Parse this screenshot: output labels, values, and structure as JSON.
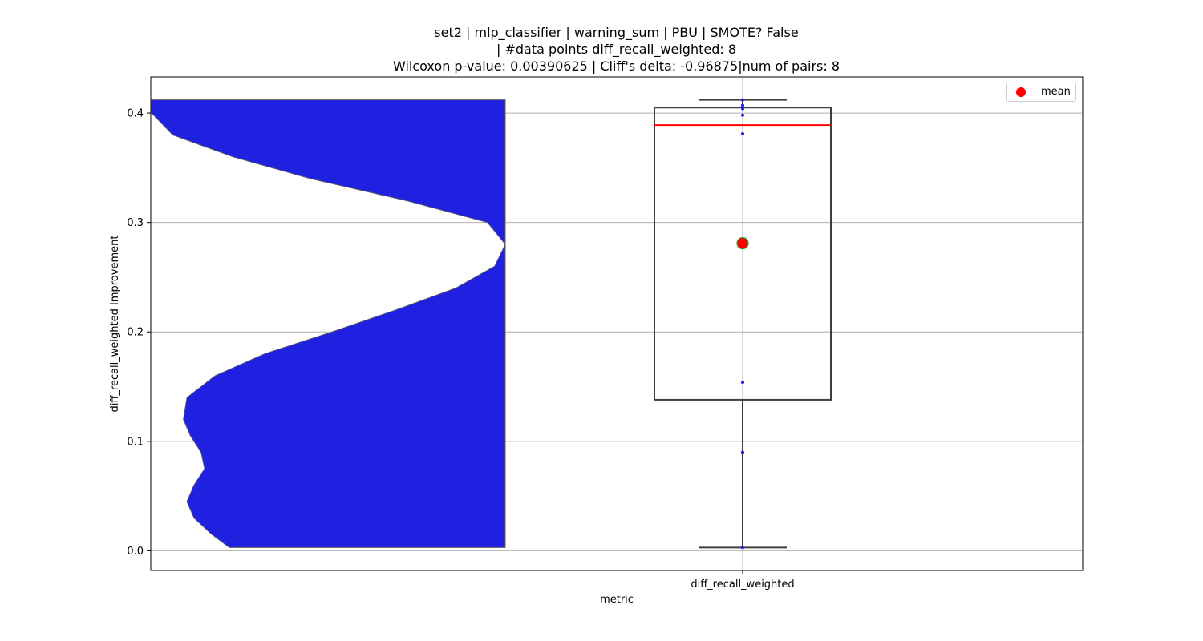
{
  "chart_data": {
    "type": "violin+box",
    "title_lines": [
      "set2 | mlp_classifier | warning_sum | PBU | SMOTE? False",
      "| #data points diff_recall_weighted: 8",
      "Wilcoxon p-value: 0.00390625 | Cliff's delta: -0.96875|num of pairs: 8"
    ],
    "xlabel": "metric",
    "ylabel": "diff_recall_weighted Improvement",
    "categories": [
      "diff_recall_weighted"
    ],
    "ylim": [
      -0.018,
      0.433
    ],
    "yticks": [
      0.0,
      0.1,
      0.2,
      0.3,
      0.4
    ],
    "ytick_labels": [
      "0.0",
      "0.1",
      "0.2",
      "0.3",
      "0.4"
    ],
    "grid": true,
    "points": [
      0.003,
      0.09,
      0.154,
      0.381,
      0.398,
      0.404,
      0.407,
      0.412
    ],
    "box": {
      "q1": 0.138,
      "median": 0.389,
      "q3": 0.405,
      "whisker_low": 0.003,
      "whisker_high": 0.412
    },
    "mean": 0.281,
    "violin_density": [
      [
        0.003,
        0.78
      ],
      [
        0.015,
        0.83
      ],
      [
        0.03,
        0.88
      ],
      [
        0.045,
        0.9
      ],
      [
        0.06,
        0.88
      ],
      [
        0.075,
        0.85
      ],
      [
        0.09,
        0.86
      ],
      [
        0.105,
        0.89
      ],
      [
        0.12,
        0.91
      ],
      [
        0.14,
        0.9
      ],
      [
        0.16,
        0.82
      ],
      [
        0.18,
        0.68
      ],
      [
        0.2,
        0.49
      ],
      [
        0.22,
        0.31
      ],
      [
        0.24,
        0.14
      ],
      [
        0.26,
        0.03
      ],
      [
        0.28,
        0.0
      ],
      [
        0.3,
        0.05
      ],
      [
        0.32,
        0.28
      ],
      [
        0.34,
        0.55
      ],
      [
        0.36,
        0.77
      ],
      [
        0.38,
        0.94
      ],
      [
        0.4,
        1.0
      ],
      [
        0.412,
        1.0
      ]
    ],
    "colors": {
      "violin": "#2020e0",
      "median": "#ff0000",
      "mean": "#ff0000",
      "mean_edge": "#2ca02c",
      "points": "#2020e0",
      "box_edge": "#3f3f3f",
      "grid": "#b0b0b0"
    },
    "legend": {
      "label": "mean",
      "position": "top-right"
    }
  }
}
